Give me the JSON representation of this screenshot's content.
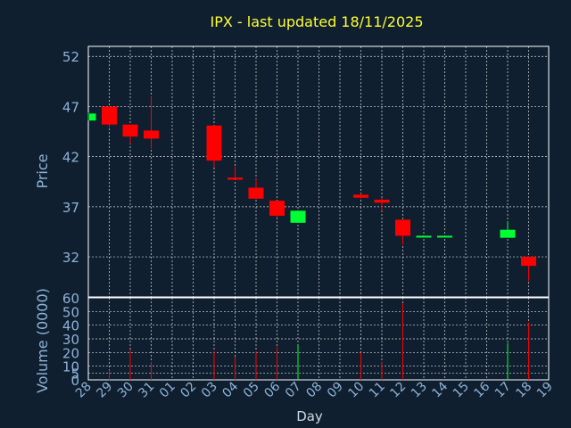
{
  "colors": {
    "background": "#0f1f2f",
    "title": "#ffff33",
    "axis_text": "#8fb3d8",
    "day_label": "#d0d7de",
    "grid": "#dddddd",
    "frame": "#ffffff",
    "up": "#00ff33",
    "down": "#ff0000"
  },
  "chart_data": {
    "type": "candlestick",
    "title": "IPX - last updated 18/11/2025",
    "xlabel": "Day",
    "price_ylabel": "Price",
    "volume_ylabel": "Volume (0000)",
    "grid": true,
    "x_ticks": [
      "28",
      "29",
      "30",
      "31",
      "01",
      "02",
      "03",
      "04",
      "05",
      "06",
      "07",
      "08",
      "09",
      "10",
      "11",
      "12",
      "13",
      "14",
      "15",
      "16",
      "17",
      "18",
      "19"
    ],
    "price_ylim": [
      28,
      53
    ],
    "price_yticks": [
      32,
      37,
      42,
      47,
      52
    ],
    "volume_ylim": [
      0,
      60
    ],
    "volume_yticks": [
      0,
      5,
      10,
      20,
      30,
      40,
      50,
      60
    ],
    "candles": [
      {
        "day": "28",
        "open": 45.6,
        "high": 46.4,
        "low": 45.6,
        "close": 46.3,
        "volume": 0
      },
      {
        "day": "29",
        "open": 47.0,
        "high": 47.0,
        "low": 44.9,
        "close": 45.2,
        "volume": 7
      },
      {
        "day": "30",
        "open": 45.2,
        "high": 45.2,
        "low": 43.3,
        "close": 44.0,
        "volume": 22
      },
      {
        "day": "31",
        "open": 44.6,
        "high": 48.0,
        "low": 42.8,
        "close": 43.8,
        "volume": 13
      },
      {
        "day": "03",
        "open": 45.1,
        "high": 45.1,
        "low": 40.9,
        "close": 41.6,
        "volume": 21
      },
      {
        "day": "04",
        "open": 39.9,
        "high": 41.0,
        "low": 39.7,
        "close": 39.7,
        "volume": 17
      },
      {
        "day": "05",
        "open": 38.9,
        "high": 39.8,
        "low": 37.8,
        "close": 37.8,
        "volume": 21
      },
      {
        "day": "06",
        "open": 37.6,
        "high": 37.6,
        "low": 35.9,
        "close": 36.1,
        "volume": 24
      },
      {
        "day": "07",
        "open": 35.4,
        "high": 36.6,
        "low": 35.4,
        "close": 36.6,
        "volume": 25
      },
      {
        "day": "10",
        "open": 38.2,
        "high": 38.3,
        "low": 37.8,
        "close": 37.9,
        "volume": 20
      },
      {
        "day": "11",
        "open": 37.7,
        "high": 37.9,
        "low": 36.6,
        "close": 37.4,
        "volume": 13
      },
      {
        "day": "12",
        "open": 35.7,
        "high": 35.7,
        "low": 33.2,
        "close": 34.1,
        "volume": 56
      },
      {
        "day": "13",
        "open": 34.1,
        "high": 34.1,
        "low": 34.0,
        "close": 34.1,
        "volume": 0
      },
      {
        "day": "14",
        "open": 34.1,
        "high": 34.1,
        "low": 34.0,
        "close": 34.1,
        "volume": 0
      },
      {
        "day": "17",
        "open": 33.9,
        "high": 35.5,
        "low": 33.9,
        "close": 34.7,
        "volume": 27
      },
      {
        "day": "18",
        "open": 32.0,
        "high": 32.0,
        "low": 29.6,
        "close": 31.1,
        "volume": 42
      }
    ]
  }
}
